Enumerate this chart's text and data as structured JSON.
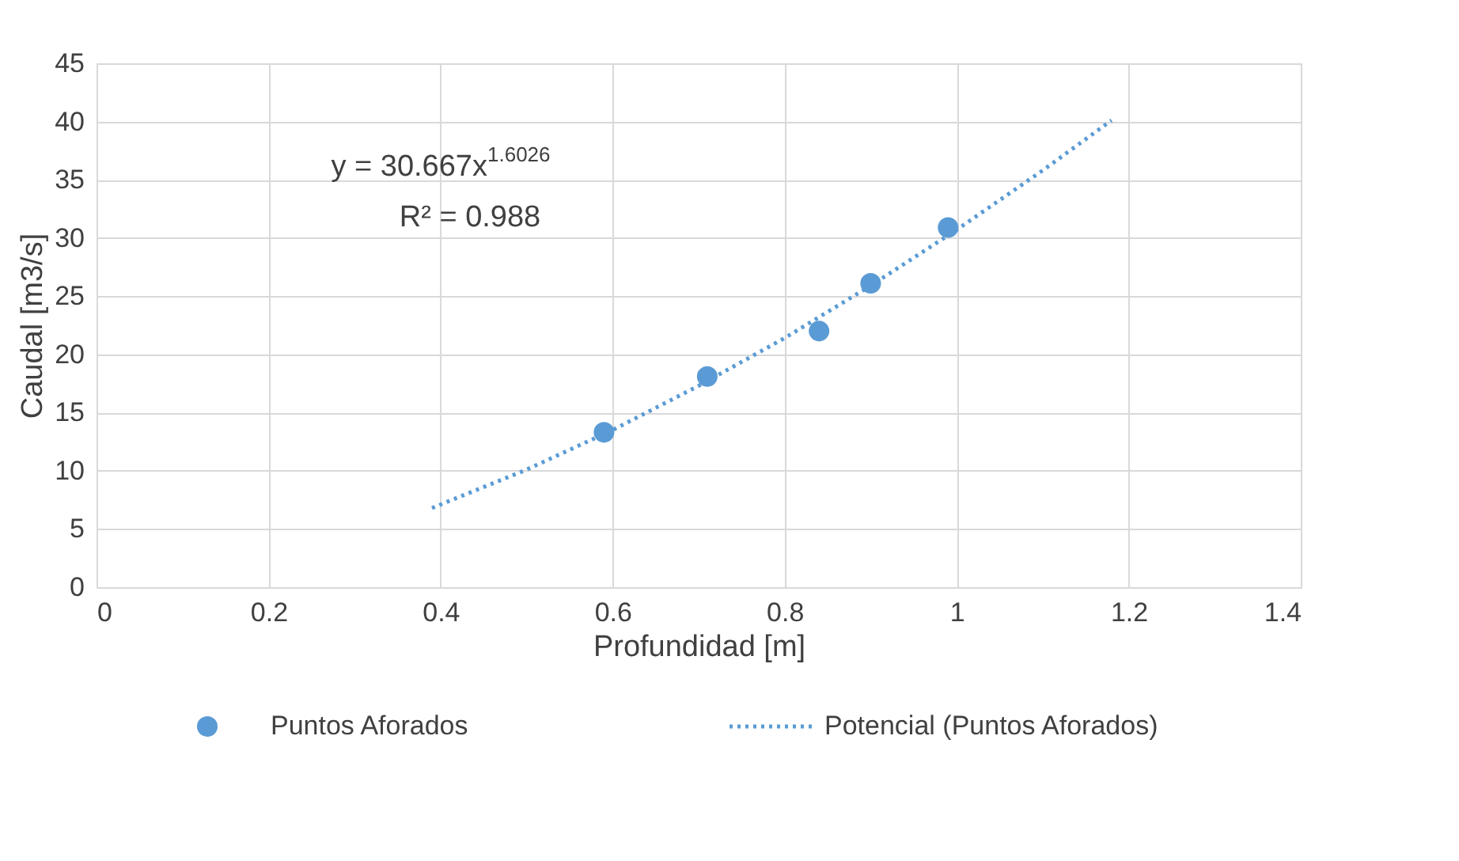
{
  "chart_data": {
    "type": "scatter",
    "xlabel": "Profundidad [m]",
    "ylabel": "Caudal [m3/s]",
    "series": [
      {
        "name": "Puntos Aforados",
        "color": "#5b9bd5",
        "marker": "circle",
        "x": [
          0.59,
          0.71,
          0.84,
          0.9,
          0.99
        ],
        "values": [
          13.3,
          18.1,
          22.0,
          26.1,
          30.9
        ]
      },
      {
        "name": "Potencial (Puntos Aforados)",
        "type": "line",
        "color": "#5b9bd5",
        "line_style": "dotted",
        "x": [
          0.39,
          0.5,
          0.6,
          0.7,
          0.8,
          0.9,
          1.0,
          1.1,
          1.18
        ],
        "values": [
          6.8,
          10.1,
          13.5,
          17.3,
          21.4,
          25.9,
          30.7,
          35.8,
          40.1
        ]
      }
    ],
    "annotations": [
      "y = 30.667x$^{1.6026}$",
      "R² = 0.988"
    ],
    "xlim": [
      0,
      1.4
    ],
    "xticks": [
      0,
      0.2,
      0.4,
      0.6,
      0.8,
      1,
      1.2,
      1.4
    ],
    "ylim": [
      0,
      45
    ],
    "yticks": [
      0,
      5,
      10,
      15,
      20,
      25,
      30,
      35,
      40,
      45
    ],
    "grid": true,
    "legend": "bottom"
  }
}
